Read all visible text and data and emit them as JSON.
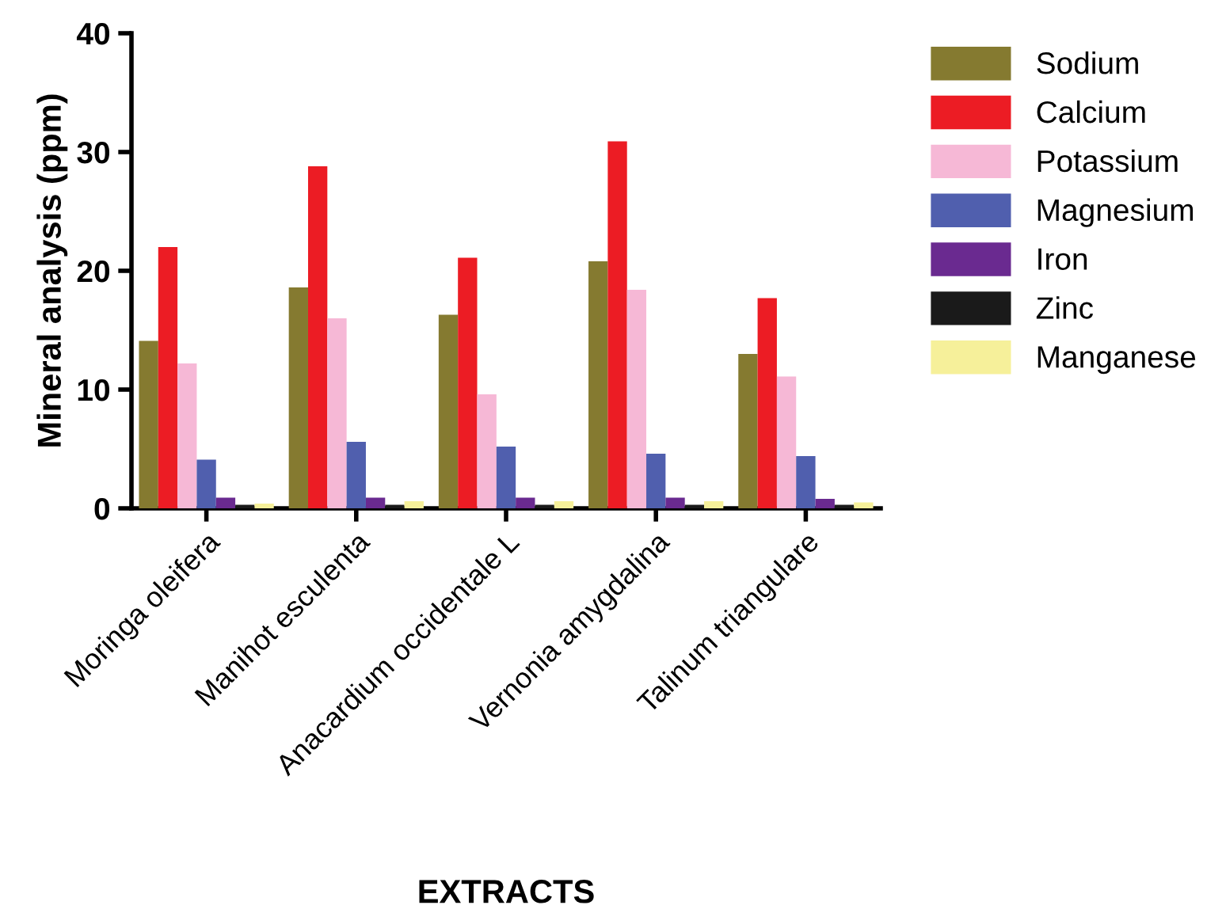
{
  "chart_data": {
    "type": "bar",
    "xlabel": "EXTRACTS",
    "ylabel": "Mineral analysis (ppm)",
    "categories": [
      "Moringa oleifera",
      "Manihot esculenta",
      "Anacardium occidentale L",
      "Vernonia amygdalina",
      "Talinum triangulare"
    ],
    "series": [
      {
        "name": "Sodium",
        "color": "#857a30",
        "values": [
          14.1,
          18.6,
          16.3,
          20.8,
          13.0
        ]
      },
      {
        "name": "Calcium",
        "color": "#ec1c24",
        "values": [
          22.0,
          28.8,
          21.1,
          30.9,
          17.7
        ]
      },
      {
        "name": "Potassium",
        "color": "#f6b8d6",
        "values": [
          12.2,
          16.0,
          9.6,
          18.4,
          11.1
        ]
      },
      {
        "name": "Magnesium",
        "color": "#505fae",
        "values": [
          4.1,
          5.6,
          5.2,
          4.6,
          4.4
        ]
      },
      {
        "name": "Iron",
        "color": "#6a2a90",
        "values": [
          0.9,
          0.9,
          0.9,
          0.9,
          0.8
        ]
      },
      {
        "name": "Zinc",
        "color": "#1a1a1a",
        "values": [
          0.3,
          0.3,
          0.3,
          0.3,
          0.3
        ]
      },
      {
        "name": "Manganese",
        "color": "#f6f09a",
        "values": [
          0.4,
          0.6,
          0.6,
          0.6,
          0.5
        ]
      }
    ],
    "ylim": [
      0,
      40
    ],
    "yticks": [
      0,
      10,
      20,
      30,
      40
    ],
    "grid": false,
    "legend": "top right"
  }
}
